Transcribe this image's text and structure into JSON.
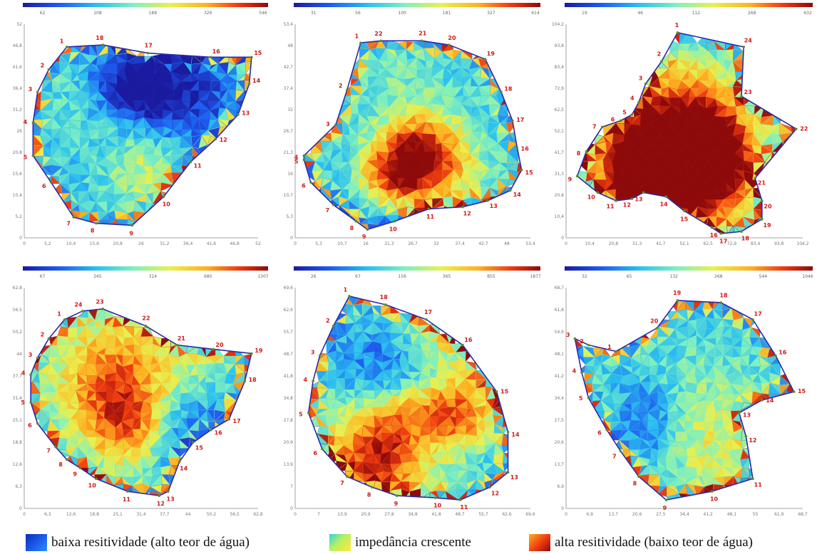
{
  "colors": {
    "low": "#1c3fd4",
    "mid": "#d8ef5a",
    "high": "#c41a10",
    "outline": "#2a2aa8",
    "point": "#5a8a2a",
    "label": "#d01818",
    "axis": "#888888",
    "gradient": [
      "#1a1aa0",
      "#1e5cf0",
      "#2bbff0",
      "#7ef0c0",
      "#e8f050",
      "#ffb020",
      "#ee3a10",
      "#8e0a0a"
    ]
  },
  "panels": [
    {
      "scale_ticks": [
        "62",
        "108",
        "188",
        "326",
        "546"
      ],
      "y_ticks": [
        "52",
        "46,8",
        "41,6",
        "36,4",
        "31,2",
        "26",
        "20,8",
        "15,6",
        "10,4",
        "5,2",
        "0"
      ],
      "x_ticks": [
        "0",
        "5,2",
        "10,4",
        "15,6",
        "20,8",
        "26",
        "31,2",
        "36,4",
        "41,6",
        "46,8",
        "52"
      ],
      "points": [
        {
          "n": "1",
          "x": 0.17,
          "y": 0.09
        },
        {
          "n": "2",
          "x": 0.09,
          "y": 0.2
        },
        {
          "n": "3",
          "x": 0.04,
          "y": 0.31
        },
        {
          "n": "4",
          "x": 0.02,
          "y": 0.46
        },
        {
          "n": "5",
          "x": 0.02,
          "y": 0.62
        },
        {
          "n": "6",
          "x": 0.1,
          "y": 0.75
        },
        {
          "n": "7",
          "x": 0.2,
          "y": 0.92
        },
        {
          "n": "8",
          "x": 0.3,
          "y": 0.95
        },
        {
          "n": "9",
          "x": 0.46,
          "y": 0.96
        },
        {
          "n": "10",
          "x": 0.6,
          "y": 0.82
        },
        {
          "n": "11",
          "x": 0.72,
          "y": 0.65
        },
        {
          "n": "12",
          "x": 0.83,
          "y": 0.54
        },
        {
          "n": "13",
          "x": 0.93,
          "y": 0.42
        },
        {
          "n": "14",
          "x": 0.98,
          "y": 0.27
        },
        {
          "n": "15",
          "x": 0.99,
          "y": 0.14
        },
        {
          "n": "16",
          "x": 0.81,
          "y": 0.14
        },
        {
          "n": "17",
          "x": 0.53,
          "y": 0.12
        },
        {
          "n": "18",
          "x": 0.33,
          "y": 0.08
        }
      ]
    },
    {
      "scale_ticks": [
        "31",
        "56",
        "100",
        "181",
        "327",
        "614"
      ],
      "y_ticks": [
        "53,4",
        "48",
        "42,7",
        "37,4",
        "32",
        "26,7",
        "21,3",
        "16",
        "10,7",
        "5,3",
        "0"
      ],
      "x_ticks": [
        "0",
        "5,3",
        "10,7",
        "16",
        "21,3",
        "26,7",
        "32",
        "37,4",
        "42,7",
        "48",
        "53,4"
      ],
      "points": [
        {
          "n": "1",
          "x": 0.27,
          "y": 0.07
        },
        {
          "n": "2",
          "x": 0.21,
          "y": 0.3
        },
        {
          "n": "3",
          "x": 0.16,
          "y": 0.47
        },
        {
          "n": "4",
          "x": 0.02,
          "y": 0.62
        },
        {
          "n": "5",
          "x": 0.02,
          "y": 0.64
        },
        {
          "n": "6",
          "x": 0.05,
          "y": 0.75
        },
        {
          "n": "7",
          "x": 0.15,
          "y": 0.86
        },
        {
          "n": "8",
          "x": 0.25,
          "y": 0.94
        },
        {
          "n": "9",
          "x": 0.3,
          "y": 0.98
        },
        {
          "n": "10",
          "x": 0.42,
          "y": 0.94
        },
        {
          "n": "11",
          "x": 0.57,
          "y": 0.88
        },
        {
          "n": "12",
          "x": 0.72,
          "y": 0.87
        },
        {
          "n": "13",
          "x": 0.83,
          "y": 0.84
        },
        {
          "n": "14",
          "x": 0.93,
          "y": 0.79
        },
        {
          "n": "15",
          "x": 0.98,
          "y": 0.69
        },
        {
          "n": "16",
          "x": 0.96,
          "y": 0.58
        },
        {
          "n": "17",
          "x": 0.94,
          "y": 0.45
        },
        {
          "n": "18",
          "x": 0.89,
          "y": 0.31
        },
        {
          "n": "19",
          "x": 0.82,
          "y": 0.15
        },
        {
          "n": "20",
          "x": 0.66,
          "y": 0.08
        },
        {
          "n": "21",
          "x": 0.54,
          "y": 0.06
        },
        {
          "n": "22",
          "x": 0.36,
          "y": 0.06
        }
      ]
    },
    {
      "scale_ticks": [
        "19",
        "46",
        "112",
        "268",
        "632"
      ],
      "y_ticks": [
        "104,2",
        "93,8",
        "83,4",
        "72,9",
        "62,5",
        "52,1",
        "41,7",
        "31,3",
        "20,8",
        "10,4",
        "0"
      ],
      "x_ticks": [
        "0",
        "10,4",
        "20,8",
        "31,3",
        "41,7",
        "52,1",
        "62,5",
        "72,9",
        "83,4",
        "93,8",
        "104,2"
      ],
      "points": [
        {
          "n": "1",
          "x": 0.47,
          "y": 0.02
        },
        {
          "n": "2",
          "x": 0.4,
          "y": 0.16
        },
        {
          "n": "3",
          "x": 0.33,
          "y": 0.27
        },
        {
          "n": "4",
          "x": 0.3,
          "y": 0.36
        },
        {
          "n": "5",
          "x": 0.27,
          "y": 0.42
        },
        {
          "n": "6",
          "x": 0.22,
          "y": 0.45
        },
        {
          "n": "7",
          "x": 0.14,
          "y": 0.48
        },
        {
          "n": "8",
          "x": 0.07,
          "y": 0.6
        },
        {
          "n": "9",
          "x": 0.03,
          "y": 0.72
        },
        {
          "n": "10",
          "x": 0.12,
          "y": 0.8
        },
        {
          "n": "11",
          "x": 0.2,
          "y": 0.84
        },
        {
          "n": "12",
          "x": 0.27,
          "y": 0.83
        },
        {
          "n": "13",
          "x": 0.32,
          "y": 0.8
        },
        {
          "n": "14",
          "x": 0.42,
          "y": 0.82
        },
        {
          "n": "15",
          "x": 0.5,
          "y": 0.89
        },
        {
          "n": "16",
          "x": 0.62,
          "y": 0.97
        },
        {
          "n": "17",
          "x": 0.66,
          "y": 1.0
        },
        {
          "n": "18",
          "x": 0.75,
          "y": 0.99
        },
        {
          "n": "19",
          "x": 0.84,
          "y": 0.93
        },
        {
          "n": "20",
          "x": 0.84,
          "y": 0.84
        },
        {
          "n": "21",
          "x": 0.81,
          "y": 0.73
        },
        {
          "n": "22",
          "x": 0.99,
          "y": 0.49
        },
        {
          "n": "23",
          "x": 0.75,
          "y": 0.33
        },
        {
          "n": "24",
          "x": 0.76,
          "y": 0.09
        }
      ]
    },
    {
      "scale_ticks": [
        "67",
        "245",
        "314",
        "680",
        "1307"
      ],
      "y_ticks": [
        "62,8",
        "56,5",
        "50,2",
        "44",
        "37,7",
        "31,4",
        "25,1",
        "18,8",
        "12,6",
        "6,3",
        "0"
      ],
      "x_ticks": [
        "0",
        "6,3",
        "12,6",
        "18,8",
        "25,1",
        "31,4",
        "37,7",
        "44",
        "50,2",
        "56,5",
        "62,8"
      ],
      "points": [
        {
          "n": "1",
          "x": 0.16,
          "y": 0.13
        },
        {
          "n": "2",
          "x": 0.09,
          "y": 0.22
        },
        {
          "n": "3",
          "x": 0.04,
          "y": 0.31
        },
        {
          "n": "4",
          "x": 0.01,
          "y": 0.39
        },
        {
          "n": "5",
          "x": 0.01,
          "y": 0.52
        },
        {
          "n": "6",
          "x": 0.04,
          "y": 0.62
        },
        {
          "n": "7",
          "x": 0.12,
          "y": 0.73
        },
        {
          "n": "8",
          "x": 0.17,
          "y": 0.79
        },
        {
          "n": "9",
          "x": 0.23,
          "y": 0.83
        },
        {
          "n": "10",
          "x": 0.3,
          "y": 0.88
        },
        {
          "n": "11",
          "x": 0.44,
          "y": 0.94
        },
        {
          "n": "12",
          "x": 0.58,
          "y": 0.96
        },
        {
          "n": "13",
          "x": 0.62,
          "y": 0.94
        },
        {
          "n": "14",
          "x": 0.67,
          "y": 0.8
        },
        {
          "n": "15",
          "x": 0.73,
          "y": 0.71
        },
        {
          "n": "16",
          "x": 0.81,
          "y": 0.65
        },
        {
          "n": "17",
          "x": 0.89,
          "y": 0.6
        },
        {
          "n": "18",
          "x": 0.96,
          "y": 0.42
        },
        {
          "n": "19",
          "x": 0.99,
          "y": 0.29
        },
        {
          "n": "20",
          "x": 0.82,
          "y": 0.27
        },
        {
          "n": "21",
          "x": 0.66,
          "y": 0.25
        },
        {
          "n": "22",
          "x": 0.52,
          "y": 0.16
        },
        {
          "n": "23",
          "x": 0.33,
          "y": 0.08
        },
        {
          "n": "24",
          "x": 0.24,
          "y": 0.09
        }
      ]
    },
    {
      "scale_ticks": [
        "26",
        "67",
        "156",
        "365",
        "855",
        "1877"
      ],
      "y_ticks": [
        "69,6",
        "62,6",
        "55,7",
        "48,7",
        "41,8",
        "34,8",
        "27,8",
        "20,9",
        "13,9",
        "7",
        "0"
      ],
      "x_ticks": [
        "0",
        "7",
        "13,9",
        "20,9",
        "27,8",
        "34,8",
        "41,8",
        "48,7",
        "55,7",
        "62,6",
        "69,6"
      ],
      "points": [
        {
          "n": "1",
          "x": 0.22,
          "y": 0.02
        },
        {
          "n": "2",
          "x": 0.15,
          "y": 0.16
        },
        {
          "n": "3",
          "x": 0.09,
          "y": 0.3
        },
        {
          "n": "4",
          "x": 0.06,
          "y": 0.42
        },
        {
          "n": "5",
          "x": 0.04,
          "y": 0.57
        },
        {
          "n": "6",
          "x": 0.1,
          "y": 0.74
        },
        {
          "n": "7",
          "x": 0.21,
          "y": 0.87
        },
        {
          "n": "8",
          "x": 0.32,
          "y": 0.92
        },
        {
          "n": "9",
          "x": 0.43,
          "y": 0.96
        },
        {
          "n": "10",
          "x": 0.6,
          "y": 0.97
        },
        {
          "n": "11",
          "x": 0.71,
          "y": 0.98
        },
        {
          "n": "12",
          "x": 0.84,
          "y": 0.92
        },
        {
          "n": "13",
          "x": 0.92,
          "y": 0.85
        },
        {
          "n": "14",
          "x": 0.92,
          "y": 0.66
        },
        {
          "n": "15",
          "x": 0.87,
          "y": 0.47
        },
        {
          "n": "16",
          "x": 0.72,
          "y": 0.25
        },
        {
          "n": "17",
          "x": 0.56,
          "y": 0.13
        },
        {
          "n": "18",
          "x": 0.38,
          "y": 0.06
        }
      ]
    },
    {
      "scale_ticks": [
        "32",
        "65",
        "132",
        "268",
        "544",
        "1046"
      ],
      "y_ticks": [
        "68,7",
        "61,8",
        "54,9",
        "48,1",
        "41,2",
        "34,4",
        "27,5",
        "20,6",
        "13,7",
        "6,9",
        "0"
      ],
      "x_ticks": [
        "0",
        "6,9",
        "13,7",
        "20,6",
        "27,5",
        "34,4",
        "41,2",
        "48,1",
        "55",
        "61,9",
        "68,7"
      ],
      "points": [
        {
          "n": "1",
          "x": 0.2,
          "y": 0.28
        },
        {
          "n": "2",
          "x": 0.08,
          "y": 0.25
        },
        {
          "n": "3",
          "x": 0.02,
          "y": 0.22
        },
        {
          "n": "4",
          "x": 0.05,
          "y": 0.38
        },
        {
          "n": "5",
          "x": 0.08,
          "y": 0.5
        },
        {
          "n": "6",
          "x": 0.16,
          "y": 0.65
        },
        {
          "n": "7",
          "x": 0.22,
          "y": 0.75
        },
        {
          "n": "8",
          "x": 0.3,
          "y": 0.87
        },
        {
          "n": "9",
          "x": 0.42,
          "y": 0.98
        },
        {
          "n": "10",
          "x": 0.62,
          "y": 0.94
        },
        {
          "n": "11",
          "x": 0.8,
          "y": 0.88
        },
        {
          "n": "12",
          "x": 0.77,
          "y": 0.68
        },
        {
          "n": "13",
          "x": 0.74,
          "y": 0.57
        },
        {
          "n": "14",
          "x": 0.84,
          "y": 0.51
        },
        {
          "n": "15",
          "x": 0.98,
          "y": 0.47
        },
        {
          "n": "16",
          "x": 0.9,
          "y": 0.3
        },
        {
          "n": "17",
          "x": 0.8,
          "y": 0.13
        },
        {
          "n": "18",
          "x": 0.66,
          "y": 0.05
        },
        {
          "n": "19",
          "x": 0.47,
          "y": 0.04
        },
        {
          "n": "20",
          "x": 0.38,
          "y": 0.17
        }
      ]
    }
  ],
  "legend": {
    "low": "baixa resitividade (alto teor de água)",
    "mid": "impedância crescente",
    "high": "alta resitividade (baixo teor de água)"
  }
}
